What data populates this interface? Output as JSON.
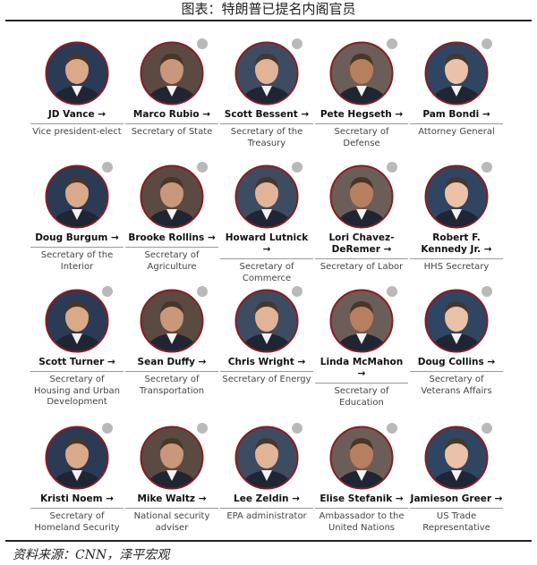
{
  "header": {
    "title": "图表：特朗普已提名内阁官员"
  },
  "people": [
    {
      "name": "JD Vance →",
      "role": "Vice president-elect"
    },
    {
      "name": "Marco Rubio →",
      "role": "Secretary of State"
    },
    {
      "name": "Scott Bessent →",
      "role": "Secretary of the Treasury"
    },
    {
      "name": "Pete Hegseth →",
      "role": "Secretary of Defense"
    },
    {
      "name": "Pam Bondi →",
      "role": "Attorney General"
    },
    {
      "name": "Doug Burgum →",
      "role": "Secretary of the Interior"
    },
    {
      "name": "Brooke Rollins →",
      "role": "Secretary of Agriculture"
    },
    {
      "name": "Howard Lutnick →",
      "role": "Secretary of Commerce"
    },
    {
      "name": "Lori Chavez-DeRemer →",
      "role": "Secretary of Labor"
    },
    {
      "name": "Robert F. Kennedy Jr. →",
      "role": "HHS Secretary"
    },
    {
      "name": "Scott Turner →",
      "role": "Secretary of Housing and Urban Development"
    },
    {
      "name": "Sean Duffy →",
      "role": "Secretary of Transportation"
    },
    {
      "name": "Chris Wright →",
      "role": "Secretary of Energy"
    },
    {
      "name": "Linda McMahon →",
      "role": "Secretary of Education"
    },
    {
      "name": "Doug Collins →",
      "role": "Secretary of Veterans Affairs"
    },
    {
      "name": "Kristi Noem →",
      "role": "Secretary of Homeland Security"
    },
    {
      "name": "Mike Waltz →",
      "role": "National security adviser"
    },
    {
      "name": "Lee Zeldin →",
      "role": "EPA administrator"
    },
    {
      "name": "Elise Stefanik →",
      "role": "Ambassador to the United Nations"
    },
    {
      "name": "Jamieson Greer →",
      "role": "US Trade Representative"
    }
  ],
  "footer": {
    "source": "资料来源：CNN，泽平宏观"
  }
}
